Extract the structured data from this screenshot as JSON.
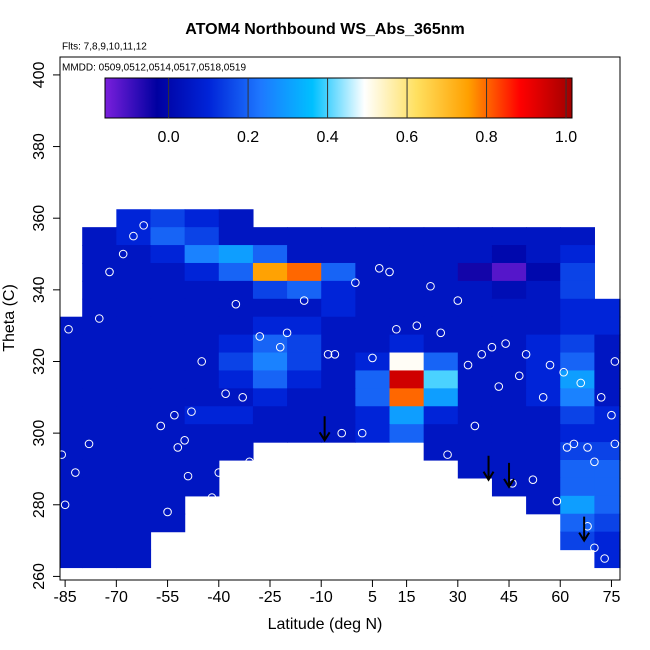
{
  "chart_data": {
    "type": "heatmap",
    "title": "ATOM4 Northbound WS_Abs_365nm",
    "annotations": [
      "Flts: 7,8,9,10,11,12",
      "MMDD: 0509,0512,0514,0517,0518,0519"
    ],
    "x_label": "Latitude (deg N)",
    "y_label": "Theta (C)",
    "xlim": [
      -86.5,
      77.5
    ],
    "ylim": [
      259,
      405
    ],
    "xticks": [
      -85,
      -70,
      -55,
      -40,
      -25,
      -10,
      5,
      15,
      30,
      45,
      60,
      75
    ],
    "yticks": [
      260,
      280,
      300,
      320,
      340,
      360,
      380,
      400
    ],
    "x": [
      -85,
      -75,
      -65,
      -55,
      -45,
      -35,
      -25,
      -15,
      -5,
      5,
      15,
      25,
      35,
      45,
      55,
      65,
      75
    ],
    "y": [
      360,
      355,
      350,
      345,
      340,
      335,
      330,
      325,
      320,
      315,
      310,
      305,
      300,
      295,
      290,
      285,
      280,
      275,
      270,
      265
    ],
    "z": [
      [
        null,
        null,
        0.1,
        0.15,
        0.1,
        0.05,
        null,
        null,
        null,
        null,
        null,
        null,
        null,
        null,
        null,
        null,
        null
      ],
      [
        null,
        0.05,
        0.1,
        0.2,
        0.15,
        0.05,
        0.05,
        0.05,
        0.05,
        0.05,
        0.05,
        0.05,
        0.05,
        0.05,
        0.05,
        0.05,
        null
      ],
      [
        null,
        0.05,
        0.05,
        0.1,
        0.25,
        0.3,
        0.2,
        0.05,
        0.05,
        0.05,
        0.05,
        0.05,
        0.05,
        0.0,
        0.05,
        0.1,
        null
      ],
      [
        null,
        0.05,
        0.05,
        0.05,
        0.1,
        0.2,
        0.75,
        0.8,
        0.2,
        0.05,
        0.05,
        0.05,
        -0.05,
        -0.12,
        0.0,
        0.15,
        null
      ],
      [
        null,
        0.05,
        0.05,
        0.05,
        0.05,
        0.05,
        0.15,
        0.2,
        0.1,
        0.05,
        0.05,
        0.05,
        0.05,
        0.02,
        0.05,
        0.15,
        null
      ],
      [
        null,
        0.05,
        0.05,
        0.05,
        0.05,
        0.05,
        0.05,
        0.05,
        0.1,
        0.05,
        0.05,
        0.05,
        0.05,
        0.05,
        0.05,
        0.1,
        0.1
      ],
      [
        0.05,
        0.05,
        0.05,
        0.05,
        0.05,
        0.05,
        0.1,
        0.1,
        0.05,
        0.05,
        0.05,
        0.05,
        0.05,
        0.05,
        0.05,
        0.1,
        0.1
      ],
      [
        0.05,
        0.05,
        0.05,
        0.05,
        0.05,
        0.1,
        0.2,
        0.15,
        0.05,
        0.05,
        0.1,
        0.05,
        0.05,
        0.05,
        0.1,
        0.15,
        0.05
      ],
      [
        0.05,
        0.05,
        0.05,
        0.05,
        0.05,
        0.15,
        0.25,
        0.15,
        0.05,
        0.1,
        0.5,
        0.2,
        0.05,
        0.05,
        0.1,
        0.2,
        0.05
      ],
      [
        0.05,
        0.05,
        0.05,
        0.05,
        0.05,
        0.1,
        0.2,
        0.1,
        0.05,
        0.2,
        0.95,
        0.4,
        0.05,
        0.05,
        0.1,
        0.3,
        0.05
      ],
      [
        0.05,
        0.05,
        0.05,
        0.05,
        0.05,
        0.05,
        0.1,
        0.05,
        0.05,
        0.2,
        0.8,
        0.3,
        0.05,
        0.05,
        0.1,
        0.25,
        0.05
      ],
      [
        0.05,
        0.05,
        0.05,
        0.05,
        0.1,
        0.1,
        0.05,
        0.05,
        0.05,
        0.1,
        0.3,
        0.1,
        0.05,
        0.05,
        0.05,
        0.15,
        0.1
      ],
      [
        0.05,
        0.05,
        0.05,
        0.05,
        0.05,
        0.05,
        0.05,
        0.05,
        0.05,
        0.1,
        0.2,
        0.05,
        0.05,
        0.05,
        0.05,
        0.1,
        0.1
      ],
      [
        0.05,
        0.05,
        0.05,
        0.05,
        0.05,
        0.05,
        null,
        null,
        null,
        null,
        null,
        0.05,
        0.05,
        0.05,
        0.05,
        0.15,
        0.15
      ],
      [
        0.05,
        0.05,
        0.05,
        0.05,
        0.05,
        null,
        null,
        null,
        null,
        null,
        null,
        null,
        0.05,
        0.05,
        0.05,
        0.2,
        0.2
      ],
      [
        0.05,
        0.05,
        0.05,
        0.05,
        0.05,
        null,
        null,
        null,
        null,
        null,
        null,
        null,
        null,
        0.05,
        0.05,
        0.2,
        0.2
      ],
      [
        0.05,
        0.05,
        0.05,
        0.05,
        null,
        null,
        null,
        null,
        null,
        null,
        null,
        null,
        null,
        null,
        0.05,
        0.3,
        0.2
      ],
      [
        0.05,
        0.05,
        0.05,
        0.05,
        null,
        null,
        null,
        null,
        null,
        null,
        null,
        null,
        null,
        null,
        null,
        0.2,
        0.15
      ],
      [
        0.05,
        0.05,
        0.05,
        null,
        null,
        null,
        null,
        null,
        null,
        null,
        null,
        null,
        null,
        null,
        null,
        0.15,
        0.1
      ],
      [
        0.05,
        0.05,
        0.05,
        null,
        null,
        null,
        null,
        null,
        null,
        null,
        null,
        null,
        null,
        null,
        null,
        null,
        0.1
      ]
    ],
    "colorlim": [
      -0.16,
      1.015
    ],
    "colorscale": [
      "#7a1fdc",
      "#0000a0",
      "#0024d8",
      "#1e78ff",
      "#00c0ff",
      "#ffffff",
      "#ffe060",
      "#ffa000",
      "#ff0000",
      "#a00000"
    ],
    "colorticks": [
      {
        "value": 0,
        "label": "0.0"
      },
      0.2,
      0.4,
      0.6,
      0.8,
      {
        "value": 1,
        "label": "1.0"
      }
    ],
    "points": {
      "color": "#ffffff",
      "x": [
        -86,
        -85,
        -84,
        -82,
        -78,
        -75,
        -72,
        -68,
        -65,
        -62,
        -57,
        -55,
        -53,
        -52,
        -50,
        -49,
        -48,
        -45,
        -42,
        -40,
        -38,
        -35,
        -33,
        -31,
        -28,
        -24,
        -22,
        -20,
        -18,
        -15,
        -12,
        -8,
        -6,
        -4,
        0,
        2,
        5,
        7,
        10,
        12,
        18,
        22,
        25,
        27,
        30,
        33,
        35,
        37,
        40,
        42,
        44,
        46,
        48,
        50,
        52,
        55,
        57,
        59,
        61,
        62,
        64,
        66,
        68,
        70,
        72,
        74,
        75,
        76,
        77,
        68,
        70,
        73,
        76
      ],
      "y": [
        294,
        280,
        329,
        289,
        297,
        332,
        345,
        350,
        355,
        358,
        302,
        278,
        305,
        296,
        298,
        288,
        306,
        320,
        282,
        289,
        311,
        336,
        310,
        292,
        327,
        296,
        324,
        328,
        296,
        337,
        289,
        322,
        322,
        300,
        342,
        300,
        321,
        346,
        345,
        329,
        330,
        341,
        328,
        294,
        337,
        319,
        302,
        322,
        324,
        313,
        325,
        286,
        316,
        322,
        287,
        310,
        319,
        281,
        317,
        296,
        297,
        314,
        296,
        292,
        310,
        346,
        305,
        320,
        350,
        274,
        268,
        265,
        297
      ]
    },
    "arrows": {
      "x": [
        -9,
        39,
        45,
        67
      ],
      "y": [
        298,
        287,
        285,
        270
      ]
    }
  }
}
